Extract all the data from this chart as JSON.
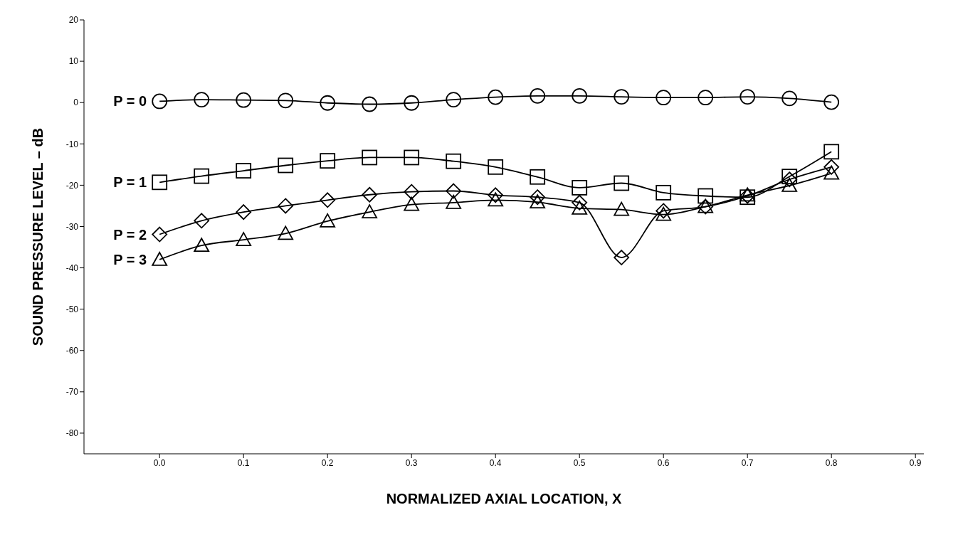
{
  "chart_data": {
    "type": "line",
    "xlabel": "NORMALIZED AXIAL LOCATION, X",
    "ylabel": "SOUND PRESSURE LEVEL – dB",
    "x": [
      0,
      0.05,
      0.1,
      0.15,
      0.2,
      0.25,
      0.3,
      0.35,
      0.4,
      0.45,
      0.5,
      0.55,
      0.6,
      0.65,
      0.7,
      0.75,
      0.8
    ],
    "xlim": [
      -0.09,
      0.91
    ],
    "xticks": [
      {
        "value": 0,
        "label": "0.0"
      },
      0.1,
      0.2,
      0.3,
      0.4,
      0.5,
      0.6,
      0.7,
      0.8,
      0.9
    ],
    "ylim": [
      -85,
      20
    ],
    "yticks": [
      20,
      10,
      0,
      -10,
      -20,
      -30,
      -40,
      -50,
      -60,
      -70,
      -80
    ],
    "grid": false,
    "legend": false,
    "line_style": "solid",
    "series": [
      {
        "name": "P = 0",
        "color": "#000000",
        "marker": "circle",
        "values": [
          0.3,
          0.7,
          0.6,
          0.5,
          -0.1,
          -0.4,
          -0.1,
          0.7,
          1.3,
          1.6,
          1.6,
          1.4,
          1.2,
          1.2,
          1.4,
          1.0,
          0.1
        ]
      },
      {
        "name": "P = 1",
        "color": "#000000",
        "marker": "square",
        "values": [
          -19.3,
          -17.8,
          -16.5,
          -15.2,
          -14.1,
          -13.3,
          -13.3,
          -14.2,
          -15.6,
          -18.0,
          -20.6,
          -19.5,
          -21.8,
          -22.6,
          -22.9,
          -17.9,
          -11.9
        ]
      },
      {
        "name": "P = 2",
        "color": "#000000",
        "marker": "diamond",
        "values": [
          -31.9,
          -28.6,
          -26.5,
          -25.0,
          -23.6,
          -22.3,
          -21.6,
          -21.4,
          -22.4,
          -22.9,
          -24.2,
          -37.5,
          -26.2,
          -25.2,
          -22.6,
          -18.6,
          -15.6
        ]
      },
      {
        "name": "P = 3",
        "color": "#000000",
        "marker": "triangle",
        "values": [
          -38.0,
          -34.6,
          -33.2,
          -31.7,
          -28.7,
          -26.5,
          -24.7,
          -24.2,
          -23.6,
          -24.1,
          -25.6,
          -25.9,
          -27.1,
          -25.2,
          -22.4,
          -20.1,
          -17.1
        ]
      }
    ]
  }
}
